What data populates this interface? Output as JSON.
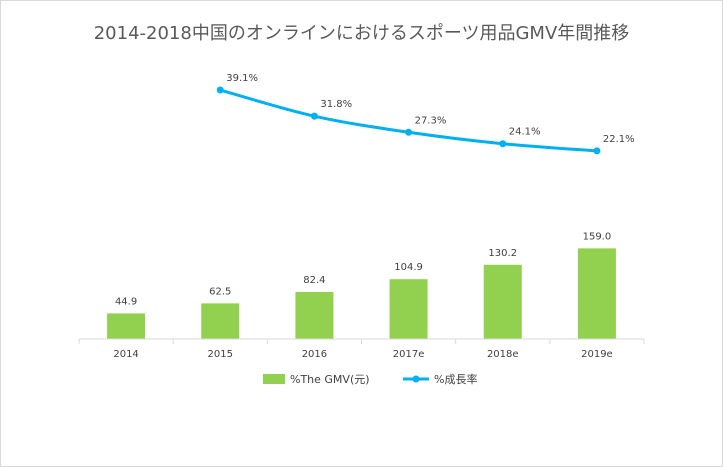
{
  "chart_data": {
    "type": "bar+line",
    "title": "2014-2018中国のオンラインにおけるスポーツ用品GMV年間推移",
    "categories": [
      "2014",
      "2015",
      "2016",
      "2017e",
      "2018e",
      "2019e"
    ],
    "series": [
      {
        "name": "%The GMV(元)",
        "type": "bar",
        "color": "#92d050",
        "values": [
          44.9,
          62.5,
          82.4,
          104.9,
          130.2,
          159.0
        ],
        "labels": [
          "44.9",
          "62.5",
          "82.4",
          "104.9",
          "130.2",
          "159.0"
        ]
      },
      {
        "name": "%成長率",
        "type": "line",
        "color": "#00b0f0",
        "values": [
          null,
          39.1,
          31.8,
          27.3,
          24.1,
          22.1
        ],
        "labels": [
          null,
          "39.1%",
          "31.8%",
          "27.3%",
          "24.1%",
          "22.1%"
        ]
      }
    ],
    "bar_ylim": [
      0,
      300
    ],
    "line_ylim": [
      0,
      65
    ],
    "grid": false,
    "legend_position": "bottom"
  }
}
